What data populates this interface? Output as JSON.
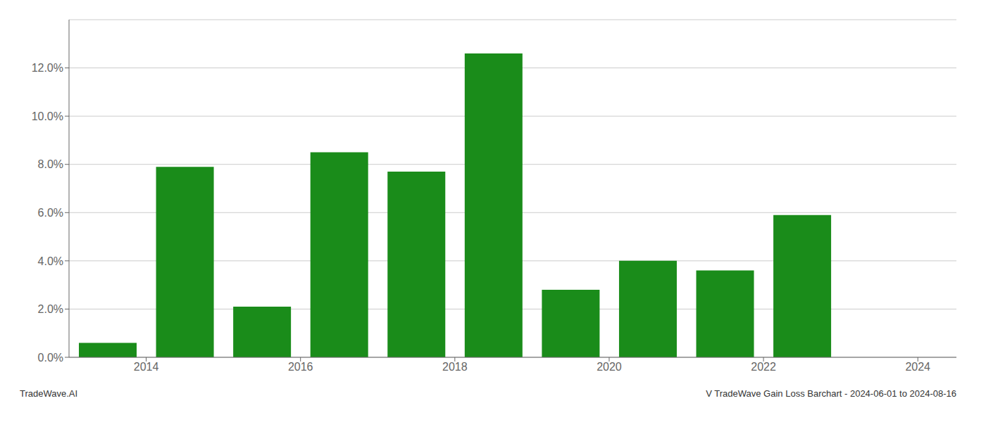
{
  "chart_data": {
    "type": "bar",
    "x": [
      2013.5,
      2014.5,
      2015.5,
      2016.5,
      2017.5,
      2018.5,
      2019.5,
      2020.5,
      2021.5,
      2022.5,
      2023.5
    ],
    "values": [
      0.006,
      0.079,
      0.021,
      0.085,
      0.077,
      0.126,
      0.028,
      0.04,
      0.036,
      0.059,
      0.0
    ],
    "color": "#1a8c1a",
    "xlim": [
      2013.0,
      2024.5
    ],
    "xticks": [
      2014,
      2016,
      2018,
      2020,
      2022,
      2024
    ],
    "ylim": [
      0,
      0.14
    ],
    "yticks": [
      {
        "value": 0.0,
        "label": "0.0%"
      },
      {
        "value": 0.02,
        "label": "2.0%"
      },
      {
        "value": 0.04,
        "label": "4.0%"
      },
      {
        "value": 0.06,
        "label": "6.0%"
      },
      {
        "value": 0.08,
        "label": "8.0%"
      },
      {
        "value": 0.1,
        "label": "10.0%"
      },
      {
        "value": 0.12,
        "label": "12.0%"
      }
    ],
    "grid": true,
    "annotations": [
      "TradeWave.AI",
      "V TradeWave Gain Loss Barchart - 2024-06-01 to 2024-08-16"
    ]
  }
}
